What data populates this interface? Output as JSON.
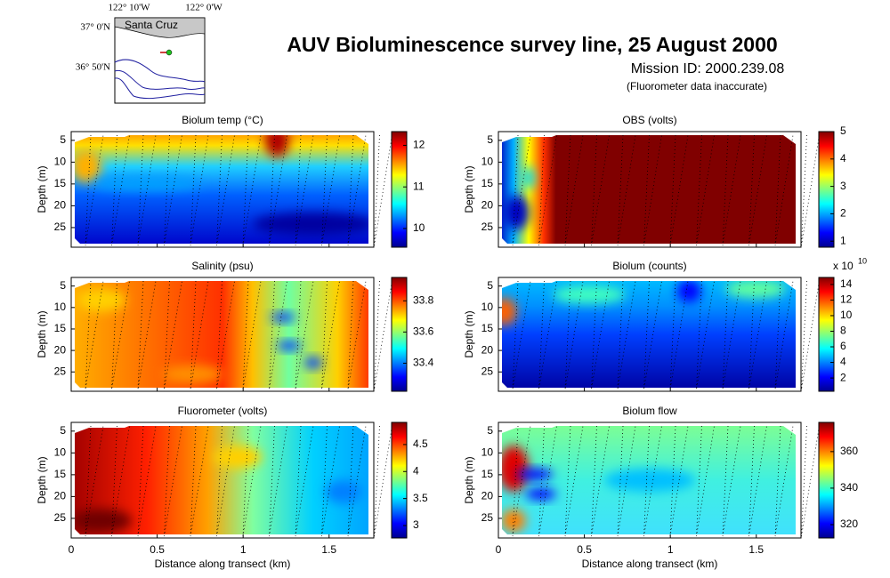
{
  "title": "AUV Bioluminescence survey line, 25 August 2000",
  "mission_id": "Mission ID: 2000.239.08",
  "note": "(Fluorometer data inaccurate)",
  "map": {
    "lon_labels": [
      "122° 10'W",
      "122° 0'W"
    ],
    "lat_labels": [
      "37° 0'N",
      "36° 50'N"
    ],
    "place": "Santa Cruz"
  },
  "chart_data": [
    {
      "type": "heatmap",
      "title": "Biolum temp (°C)",
      "ylabel": "Depth (m)",
      "xlim": [
        0,
        1.76
      ],
      "xticks": [
        0,
        0.5,
        1,
        1.5
      ],
      "ylim": [
        3,
        29.5
      ],
      "yticks": [
        5,
        10,
        15,
        20,
        25
      ],
      "y_reversed": true,
      "colormap": "jet",
      "clim": [
        9.55,
        12.33
      ],
      "cticks": [
        10,
        11,
        12
      ]
    },
    {
      "type": "heatmap",
      "title": "OBS (volts)",
      "ylabel": "Depth (m)",
      "xlim": [
        0,
        1.76
      ],
      "xticks": [
        0,
        0.5,
        1,
        1.5
      ],
      "ylim": [
        3,
        29.5
      ],
      "yticks": [
        5,
        10,
        15,
        20,
        25
      ],
      "y_reversed": true,
      "colormap": "jet",
      "clim": [
        0.78,
        5
      ],
      "cticks": [
        1,
        2,
        3,
        4,
        5
      ]
    },
    {
      "type": "heatmap",
      "title": "Salinity (psu)",
      "ylabel": "Depth (m)",
      "xlim": [
        0,
        1.76
      ],
      "xticks": [
        0,
        0.5,
        1,
        1.5
      ],
      "ylim": [
        3,
        29.5
      ],
      "yticks": [
        5,
        10,
        15,
        20,
        25
      ],
      "y_reversed": true,
      "colormap": "jet",
      "clim": [
        33.22,
        33.95
      ],
      "cticks": [
        33.4,
        33.6,
        33.8
      ]
    },
    {
      "type": "heatmap",
      "title": "Biolum (counts)",
      "ylabel": "Depth (m)",
      "xlim": [
        0,
        1.76
      ],
      "xticks": [
        0,
        0.5,
        1,
        1.5
      ],
      "ylim": [
        3,
        29.5
      ],
      "yticks": [
        5,
        10,
        15,
        20,
        25
      ],
      "y_reversed": true,
      "colormap": "jet",
      "clim": [
        0.3,
        14.9
      ],
      "cticks": [
        2,
        4,
        6,
        8,
        10,
        12,
        14
      ],
      "c_multiplier": "x 10",
      "c_exponent": "10"
    },
    {
      "type": "heatmap",
      "title": "Fluorometer (volts)",
      "xlabel": "Distance along transect (km)",
      "ylabel": "Depth (m)",
      "xlim": [
        0,
        1.76
      ],
      "xticks": [
        0,
        0.5,
        1,
        1.5
      ],
      "ylim": [
        3,
        29.5
      ],
      "yticks": [
        5,
        10,
        15,
        20,
        25
      ],
      "y_reversed": true,
      "colormap": "jet",
      "clim": [
        2.77,
        4.91
      ],
      "cticks": [
        3,
        3.5,
        4,
        4.5
      ]
    },
    {
      "type": "heatmap",
      "title": "Biolum flow",
      "xlabel": "Distance along transect (km)",
      "ylabel": "Depth (m)",
      "xlim": [
        0,
        1.76
      ],
      "xticks": [
        0,
        0.5,
        1,
        1.5
      ],
      "ylim": [
        3,
        29.5
      ],
      "yticks": [
        5,
        10,
        15,
        20,
        25
      ],
      "y_reversed": true,
      "colormap": "jet",
      "clim": [
        312.7,
        376
      ],
      "cticks": [
        320,
        340,
        360
      ]
    }
  ]
}
